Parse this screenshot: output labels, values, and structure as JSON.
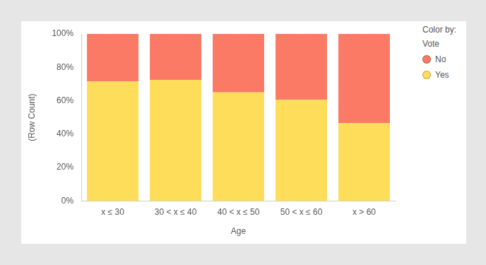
{
  "chart_data": {
    "type": "bar",
    "stacked": true,
    "xlabel": "Age",
    "ylabel": "(Row Count)",
    "legend_title": [
      "Color by:",
      "Vote"
    ],
    "legend": "top right",
    "grid": false,
    "categories": [
      "x ≤ 30",
      "30 < x ≤ 40",
      "40 < x ≤ 50",
      "50 < x ≤ 60",
      "x > 60"
    ],
    "series": [
      {
        "name": "No",
        "color": "#fa7a66",
        "values": [
          28.5,
          27.5,
          35,
          39.5,
          53.5
        ]
      },
      {
        "name": "Yes",
        "color": "#fedd5b",
        "values": [
          71.5,
          72.5,
          65,
          60.5,
          46.5
        ]
      }
    ],
    "ylim": [
      0,
      100
    ],
    "yticks": [
      {
        "value": 0,
        "label": "0%"
      },
      {
        "value": 20,
        "label": "20%"
      },
      {
        "value": 40,
        "label": "40%"
      },
      {
        "value": 60,
        "label": "60%"
      },
      {
        "value": 80,
        "label": "80%"
      },
      {
        "value": 100,
        "label": "100%"
      }
    ]
  }
}
